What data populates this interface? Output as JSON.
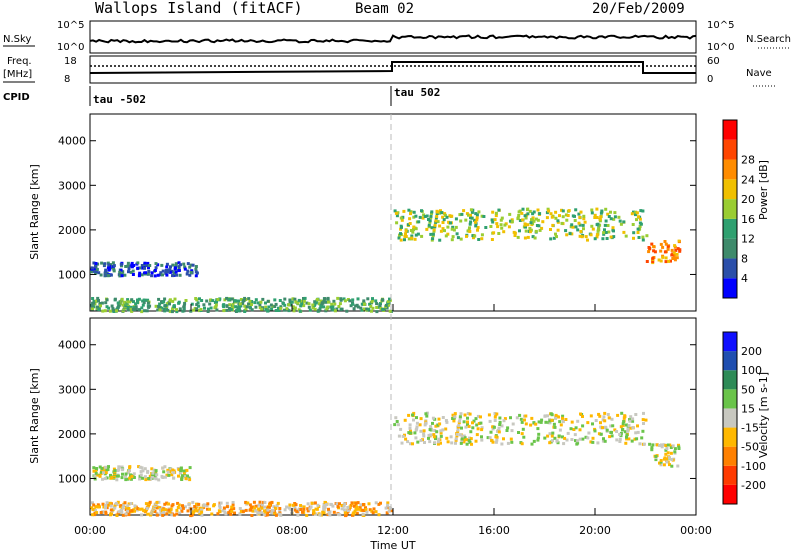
{
  "header": {
    "site": "Wallops Island (fitACF)",
    "beam": "Beam 02",
    "date": "20/Feb/2009"
  },
  "top_panels": {
    "nsky_label": "N.Sky",
    "nsearch_label": "N.Search",
    "nsky_ticks": [
      "10^5",
      "10^0"
    ],
    "nsearch_ticks": [
      "10^5",
      "10^0"
    ],
    "freq_label": "Freq.",
    "freq_unit": "[MHz]",
    "freq_ticks": [
      "18",
      "8"
    ],
    "nave_label": "Nave",
    "nave_ticks": [
      "60",
      "0"
    ],
    "cpid_label": "CPID",
    "cpid_segments": [
      "tau -502",
      "tau 502"
    ]
  },
  "colors": {
    "power": [
      "#0000ff",
      "#2b4faa",
      "#3e8a6b",
      "#2fa070",
      "#9acd32",
      "#f0c000",
      "#ff8c00",
      "#ff4500",
      "#ff0000"
    ],
    "velocity": [
      "#1010ff",
      "#204fb0",
      "#2e8b57",
      "#6ac44a",
      "#c8c8c0",
      "#ffb800",
      "#ff8000",
      "#ff3a00",
      "#ff0000"
    ],
    "cpid_marker": "#000000"
  },
  "chart_data": [
    {
      "type": "heatmap",
      "name": "power",
      "ylabel": "Slant Range [km]",
      "ylim": [
        180,
        4600
      ],
      "yticks": [
        "1000",
        "2000",
        "3000",
        "4000"
      ],
      "xlim": [
        0,
        24
      ],
      "colorbar_label": "Power [dB]",
      "colorbar_ticks": [
        "4",
        "8",
        "12",
        "16",
        "20",
        "24",
        "28"
      ],
      "regions": [
        {
          "x0": 0.0,
          "x1": 11.9,
          "y0": 200,
          "y1": 500,
          "level": 3
        },
        {
          "x0": 0.0,
          "x1": 4.2,
          "y0": 1000,
          "y1": 1300,
          "level": 1
        },
        {
          "x0": 12.0,
          "x1": 22.0,
          "y0": 1800,
          "y1": 2500,
          "level": 4
        },
        {
          "x0": 22.0,
          "x1": 23.3,
          "y0": 1300,
          "y1": 1800,
          "level": 6
        }
      ]
    },
    {
      "type": "heatmap",
      "name": "velocity",
      "ylabel": "Slant Range [km]",
      "ylim": [
        180,
        4600
      ],
      "yticks": [
        "1000",
        "2000",
        "3000",
        "4000"
      ],
      "xlim": [
        0,
        24
      ],
      "xticks": [
        "00:00",
        "04:00",
        "08:00",
        "12:00",
        "16:00",
        "20:00",
        "00:00"
      ],
      "xlabel": "Time UT",
      "colorbar_label": "Velocity [m s-1]",
      "colorbar_ticks": [
        "200",
        "100",
        "50",
        "15",
        "-15",
        "-50",
        "-100",
        "-200"
      ],
      "regions": [
        {
          "x0": 0.0,
          "x1": 11.9,
          "y0": 200,
          "y1": 500,
          "level": 5
        },
        {
          "x0": 0.0,
          "x1": 4.0,
          "y0": 1000,
          "y1": 1300,
          "level": 4
        },
        {
          "x0": 12.0,
          "x1": 22.0,
          "y0": 1800,
          "y1": 2500,
          "level": 4
        },
        {
          "x0": 22.0,
          "x1": 23.3,
          "y0": 1300,
          "y1": 1800,
          "level": 4
        }
      ]
    }
  ]
}
